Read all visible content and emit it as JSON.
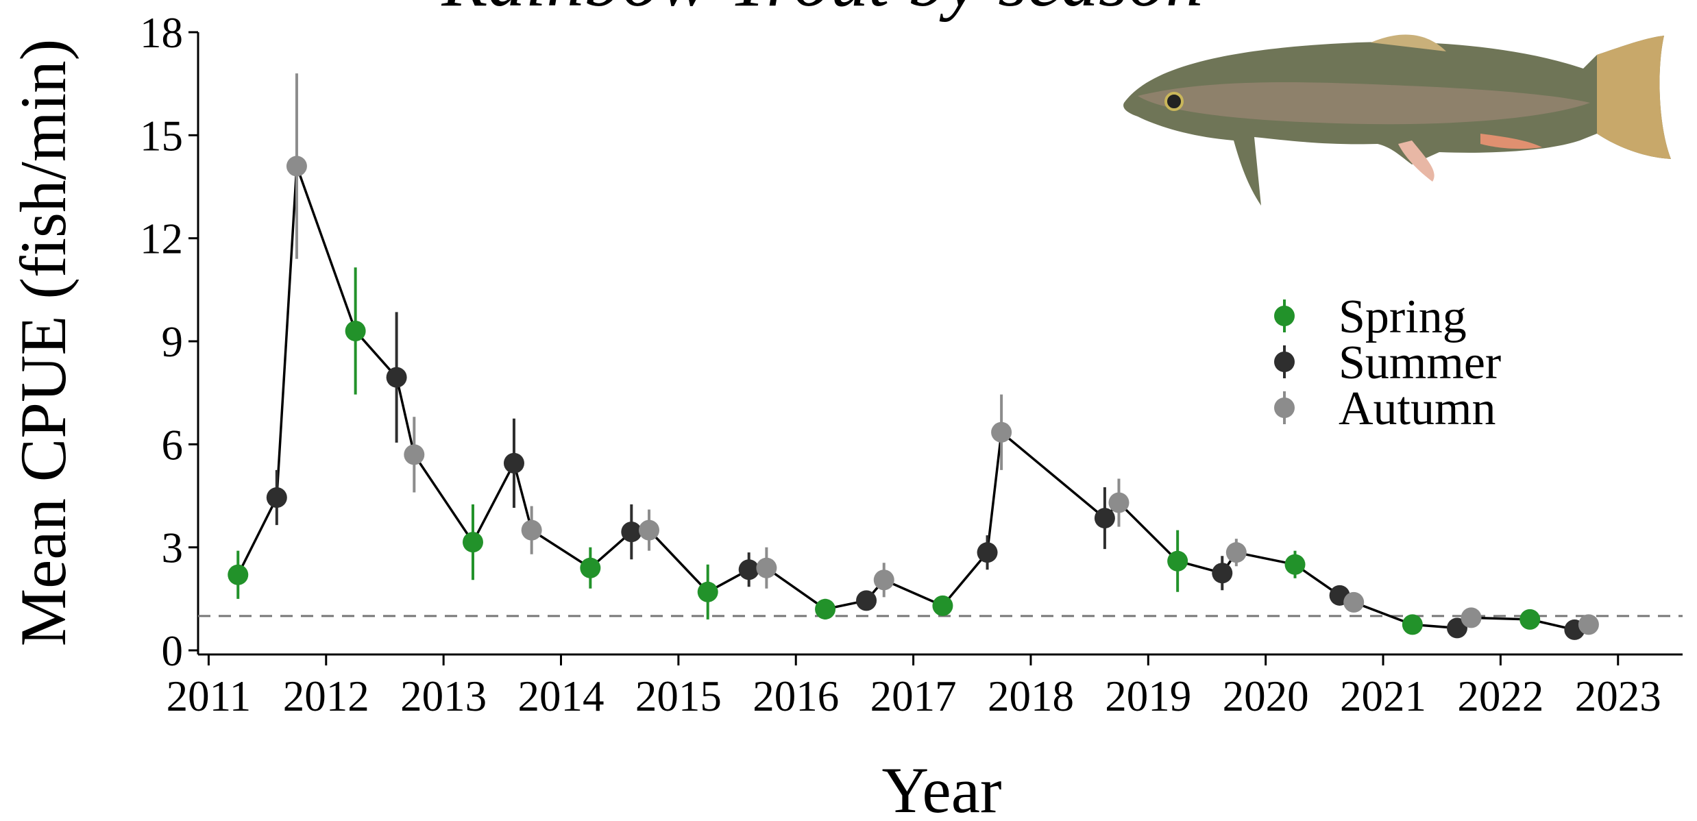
{
  "chart_data": {
    "type": "scatter-line",
    "title": "Rainbow Trout by season",
    "x_label": "Year",
    "y_label": "Mean CPUE (fish/min)",
    "seasons": [
      {
        "name": "Spring",
        "color": "#22922a"
      },
      {
        "name": "Summer",
        "color": "#2e2e2e"
      },
      {
        "name": "Autumn",
        "color": "#8c8c8c"
      }
    ],
    "x": [
      2011.25,
      2011.58,
      2011.75,
      2012.25,
      2012.6,
      2012.75,
      2013.25,
      2013.6,
      2013.75,
      2014.25,
      2014.6,
      2014.75,
      2015.25,
      2015.6,
      2015.75,
      2016.25,
      2016.6,
      2016.75,
      2017.25,
      2017.63,
      2017.75,
      2018.63,
      2018.75,
      2019.25,
      2019.63,
      2019.75,
      2020.25,
      2020.63,
      2020.75,
      2021.25,
      2021.63,
      2021.75,
      2022.25,
      2022.63,
      2022.75
    ],
    "season": [
      0,
      1,
      2,
      0,
      1,
      2,
      0,
      1,
      2,
      0,
      1,
      2,
      0,
      1,
      2,
      0,
      1,
      2,
      0,
      1,
      2,
      1,
      2,
      0,
      1,
      2,
      0,
      1,
      2,
      0,
      1,
      2,
      0,
      1,
      2
    ],
    "values": [
      2.2,
      4.45,
      14.1,
      9.3,
      7.95,
      5.7,
      3.15,
      5.45,
      3.5,
      2.4,
      3.45,
      3.5,
      1.7,
      2.35,
      2.4,
      1.2,
      1.45,
      2.05,
      1.3,
      2.85,
      6.35,
      3.85,
      4.3,
      2.6,
      2.25,
      2.85,
      2.5,
      1.6,
      1.4,
      0.75,
      0.65,
      0.95,
      0.9,
      0.6,
      0.75
    ],
    "errors": [
      0.7,
      0.8,
      2.7,
      1.85,
      1.9,
      1.1,
      1.1,
      1.3,
      0.7,
      0.6,
      0.8,
      0.6,
      0.8,
      0.5,
      0.6,
      0.3,
      0.2,
      0.5,
      0.1,
      0.5,
      1.1,
      0.9,
      0.7,
      0.9,
      0.5,
      0.4,
      0.4,
      0.2,
      0.2,
      0.1,
      0.15,
      0.2,
      0.1,
      0.1,
      0.1
    ],
    "line_color": "#000000",
    "reference_line": 1,
    "xlim": [
      2010.91,
      2023.55
    ],
    "xticks": [
      2011,
      2012,
      2013,
      2014,
      2015,
      2016,
      2017,
      2018,
      2019,
      2020,
      2021,
      2022,
      2023
    ],
    "ylim": [
      0,
      18
    ],
    "yticks": [
      0,
      3,
      6,
      9,
      12,
      15,
      18
    ]
  }
}
